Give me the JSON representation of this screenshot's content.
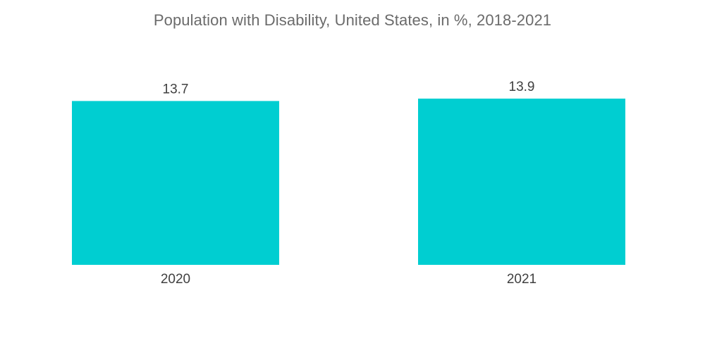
{
  "chart_data": {
    "type": "bar",
    "title": "Population with Disability, United States, in %,  2018-2021",
    "categories": [
      "2020",
      "2021"
    ],
    "values": [
      13.7,
      13.9
    ],
    "value_labels": [
      "13.7",
      "13.9"
    ],
    "xlabel": "",
    "ylabel": "",
    "ylim": [
      0,
      13.9
    ],
    "grid": false,
    "legend": "none",
    "bar_color": "#00CED1"
  }
}
